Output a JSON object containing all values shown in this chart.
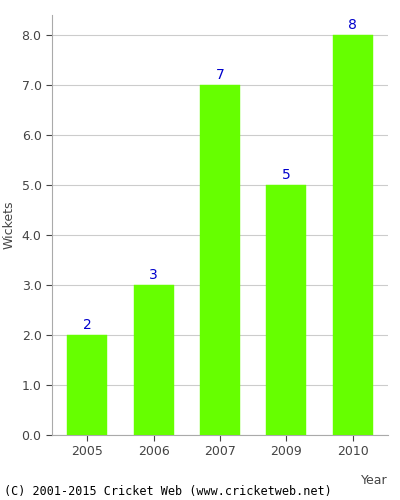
{
  "years": [
    "2005",
    "2006",
    "2007",
    "2009",
    "2010"
  ],
  "values": [
    2,
    3,
    7,
    5,
    8
  ],
  "bar_color": "#66ff00",
  "bar_edge_color": "#66ff00",
  "label_color": "#0000cc",
  "label_fontsize": 10,
  "xlabel": "Year",
  "ylabel": "Wickets",
  "ylim": [
    0,
    8.4
  ],
  "yticks": [
    0.0,
    1.0,
    2.0,
    3.0,
    4.0,
    5.0,
    6.0,
    7.0,
    8.0
  ],
  "grid_color": "#cccccc",
  "axis_color": "#aaaaaa",
  "tick_color": "#444444",
  "footer_text": "(C) 2001-2015 Cricket Web (www.cricketweb.net)",
  "footer_fontsize": 8.5,
  "bar_width": 0.6
}
